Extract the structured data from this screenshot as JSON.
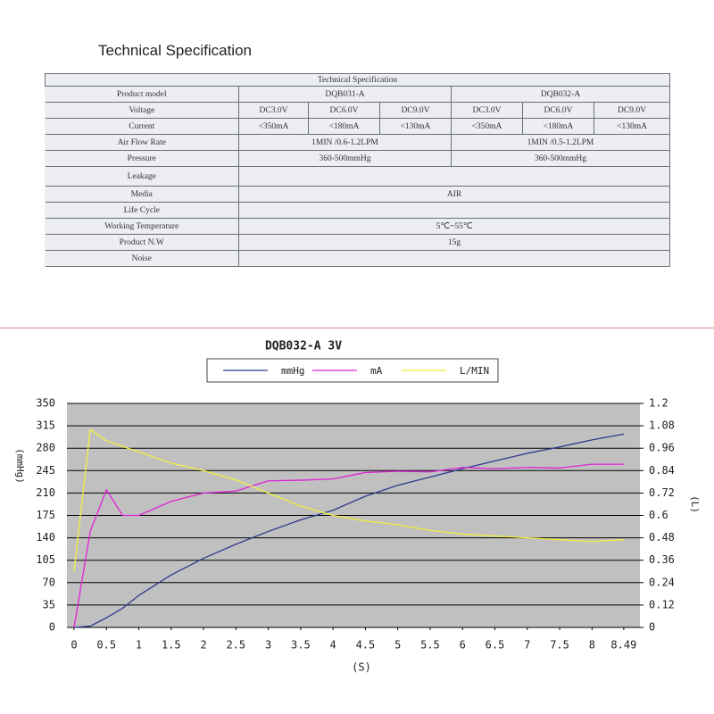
{
  "header": {
    "title": "Technical Specification"
  },
  "table": {
    "caption": "Technical Specification",
    "rows": [
      {
        "label": "Product model",
        "cells": [
          "DQB031-A",
          "DQB032-A"
        ]
      },
      {
        "label": "Voltage",
        "cells": [
          "DC3.0V",
          "DC6.0V",
          "DC9.0V",
          "DC3.0V",
          "DC6.0V",
          "DC9.0V"
        ]
      },
      {
        "label": "Current",
        "cells": [
          "<350mA",
          "<180mA",
          "<130mA",
          "<350mA",
          "<180mA",
          "<130mA"
        ]
      },
      {
        "label": "Air Flow Rate",
        "cells": [
          "1MIN /0.6-1.2LPM",
          "1MIN /0.5-1.2LPM"
        ]
      },
      {
        "label": "Pressure",
        "cells": [
          "360-500mmHg",
          "360-500mmHg"
        ]
      },
      {
        "label": "Leakage"
      },
      {
        "label": "Media",
        "cells": [
          "AIR"
        ]
      },
      {
        "label": "Life Cycle"
      },
      {
        "label": "Working Temperature",
        "cells": [
          "5℃~55℃"
        ]
      },
      {
        "label": "Product N.W",
        "cells": [
          "15g"
        ]
      },
      {
        "label": "Noise"
      }
    ]
  },
  "chart_data": {
    "type": "line",
    "title": "DQB032-A 3V",
    "x_label": "(S)",
    "y_label": "(mmHg)",
    "y2_label": "(L)",
    "x": [
      0,
      0.25,
      0.5,
      0.75,
      1,
      1.5,
      2,
      2.5,
      3,
      3.5,
      4,
      4.5,
      5,
      5.5,
      6,
      6.5,
      7,
      7.5,
      8,
      8.49
    ],
    "series": [
      {
        "name": "mmHg",
        "color": "#2e3a8c",
        "values": [
          0,
          2,
          15,
          30,
          50,
          82,
          108,
          130,
          150,
          168,
          183,
          205,
          222,
          235,
          248,
          260,
          272,
          282,
          293,
          302
        ]
      },
      {
        "name": "mA",
        "color": "#e020d8",
        "values": [
          0,
          150,
          215,
          175,
          175,
          197,
          210,
          213,
          229,
          230,
          232,
          242,
          244,
          243,
          250,
          248,
          250,
          249,
          255,
          255
        ]
      },
      {
        "name": "L/MIN",
        "color": "#f0f040",
        "axis": "y2",
        "values": [
          0.3,
          1.06,
          1.0,
          0.97,
          0.94,
          0.88,
          0.84,
          0.79,
          0.72,
          0.65,
          0.6,
          0.57,
          0.55,
          0.52,
          0.5,
          0.49,
          0.48,
          0.47,
          0.46,
          0.47
        ]
      }
    ],
    "xlim": [
      -0.11,
      8.74
    ],
    "xticks": [
      0,
      0.5,
      1,
      1.5,
      2,
      2.5,
      3,
      3.5,
      4,
      4.5,
      5,
      5.5,
      6,
      6.5,
      7,
      7.5,
      8,
      8.49
    ],
    "ylim": [
      0,
      350
    ],
    "yticks": [
      0,
      35,
      70,
      105,
      140,
      175,
      210,
      245,
      280,
      315,
      350
    ],
    "y2lim": [
      0,
      1.2
    ],
    "y2ticks": [
      0,
      0.12,
      0.24,
      0.36,
      0.48,
      0.6,
      0.72,
      0.84,
      0.96,
      1.08,
      1.2
    ],
    "grid": true
  }
}
